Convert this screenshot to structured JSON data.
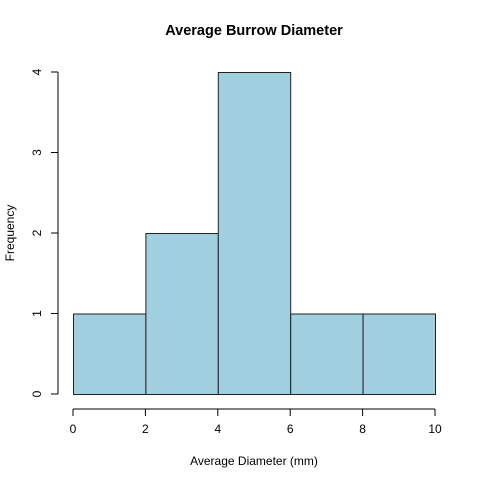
{
  "chart_data": {
    "type": "bar",
    "title": "Average Burrow Diameter",
    "xlabel": "Average Diameter (mm)",
    "ylabel": "Frequency",
    "bins": [
      {
        "from": 0,
        "to": 2,
        "count": 1
      },
      {
        "from": 2,
        "to": 4,
        "count": 2
      },
      {
        "from": 4,
        "to": 6,
        "count": 4
      },
      {
        "from": 6,
        "to": 8,
        "count": 1
      },
      {
        "from": 8,
        "to": 10,
        "count": 1
      }
    ],
    "xlim": [
      0,
      10
    ],
    "ylim": [
      0,
      4
    ],
    "x_ticks": [
      "0",
      "2",
      "4",
      "6",
      "8",
      "10"
    ],
    "y_ticks": [
      "0",
      "1",
      "2",
      "3",
      "4"
    ],
    "bar_color": "#a0cfdf",
    "grid": false
  }
}
